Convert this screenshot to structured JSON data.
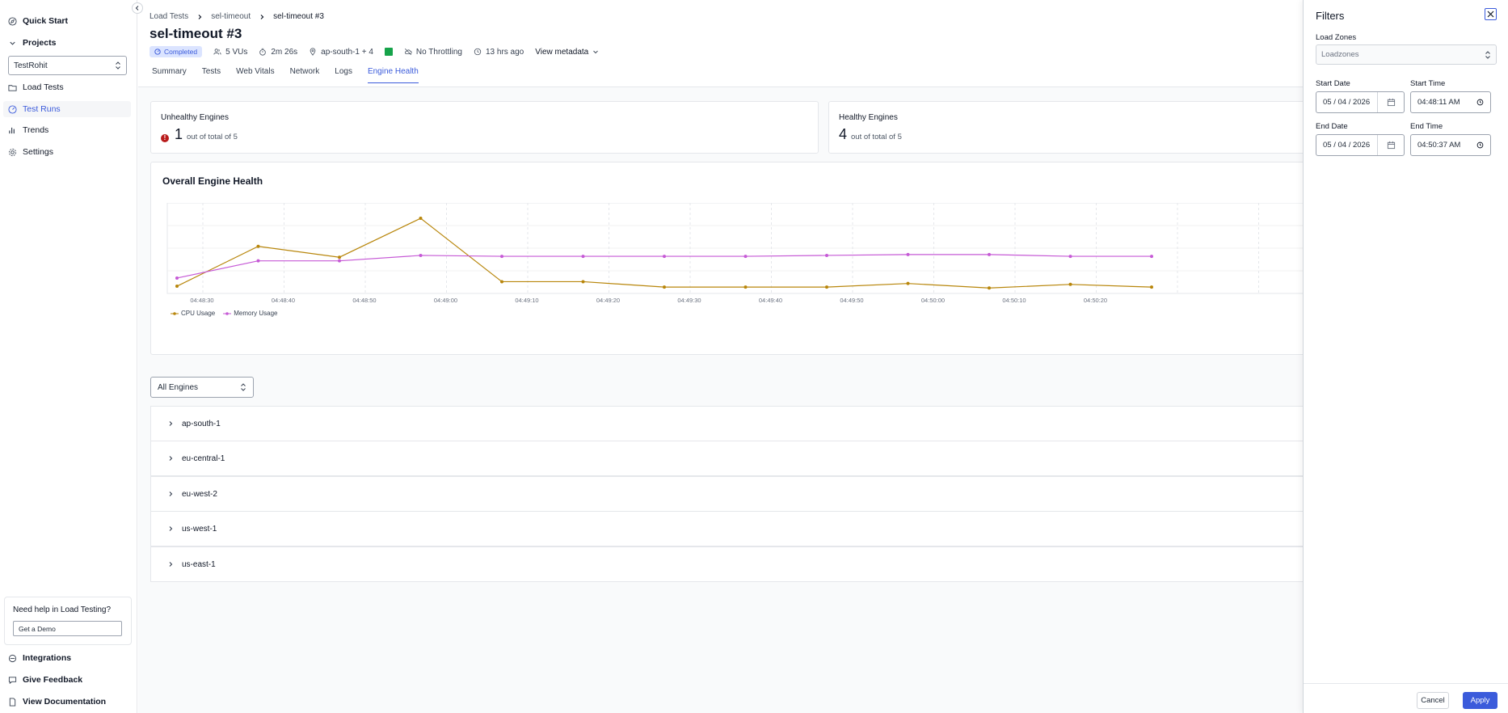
{
  "sidebar": {
    "quick_start": "Quick Start",
    "projects": "Projects",
    "project_select": "TestRohit",
    "load_tests": "Load Tests",
    "test_runs": "Test Runs",
    "trends": "Trends",
    "settings": "Settings",
    "help_title": "Need help in Load Testing?",
    "demo_button": "Get a Demo",
    "integrations": "Integrations",
    "give_feedback": "Give Feedback",
    "view_documentation": "View Documentation"
  },
  "breadcrumb": [
    "Load Tests",
    "sel-timeout",
    "sel-timeout #3"
  ],
  "header": {
    "title": "sel-timeout #3",
    "status": "Completed",
    "vus": "5 VUs",
    "duration": "2m 26s",
    "location": "ap-south-1 + 4",
    "throttling": "No Throttling",
    "time_ago": "13 hrs ago",
    "view_metadata": "View metadata"
  },
  "tabs": [
    "Summary",
    "Tests",
    "Web Vitals",
    "Network",
    "Logs",
    "Engine Health"
  ],
  "active_tab": "Engine Health",
  "unhealthy": {
    "title": "Unhealthy Engines",
    "count": "1",
    "sub": "out of total of 5"
  },
  "healthy": {
    "title": "Healthy Engines",
    "count": "4",
    "sub": "out of total of 5"
  },
  "chart_title": "Overall Engine Health",
  "chart_data": {
    "type": "line",
    "title": "Overall Engine Health",
    "categories": [
      "04:48:30",
      "04:48:40",
      "04:48:50",
      "04:49:00",
      "04:49:10",
      "04:49:20",
      "04:49:30",
      "04:49:40",
      "04:49:50",
      "04:50:00",
      "04:50:10",
      "04:50:20"
    ],
    "x": [
      0,
      1,
      2,
      3,
      4,
      5,
      6,
      7,
      8,
      9,
      10,
      11,
      12
    ],
    "series": [
      {
        "name": "CPU Usage",
        "color": "#b8860b",
        "values": [
          8,
          52,
          40,
          83,
          13,
          13,
          7,
          7,
          7,
          11,
          6,
          10,
          7
        ]
      },
      {
        "name": "Memory Usage",
        "color": "#c65ad6",
        "values": [
          17,
          36,
          36,
          42,
          41,
          41,
          41,
          41,
          42,
          43,
          43,
          41,
          41
        ]
      }
    ],
    "ylim": [
      0,
      100
    ],
    "grid": true,
    "legend": "bottom-left"
  },
  "engine_select": "All Engines",
  "regions": [
    "ap-south-1",
    "eu-central-1",
    "eu-west-2",
    "us-west-1",
    "us-east-1"
  ],
  "filters": {
    "title": "Filters",
    "load_zones_label": "Load Zones",
    "load_zones_placeholder": "Loadzones",
    "start_date_label": "Start Date",
    "start_date": "05 / 04 / 2026",
    "start_time_label": "Start Time",
    "start_time": "04:48:11  AM",
    "end_date_label": "End Date",
    "end_date": "05 / 04 / 2026",
    "end_time_label": "End Time",
    "end_time": "04:50:37  AM",
    "cancel": "Cancel",
    "apply": "Apply"
  }
}
